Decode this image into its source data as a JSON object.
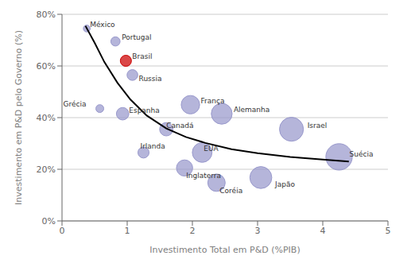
{
  "chart_data": {
    "type": "scatter",
    "xlabel": "Investimento Total em P&D (%PIB)",
    "ylabel": "Investimento em P&D pelo Governo (%)",
    "xlim": [
      0,
      5
    ],
    "ylim": [
      0,
      0.8
    ],
    "xticks": [
      0,
      1,
      2,
      3,
      4,
      5
    ],
    "yticks": [
      {
        "value": 0.0,
        "label": "0%"
      },
      {
        "value": 0.2,
        "label": "20%"
      },
      {
        "value": 0.4,
        "label": "40%"
      },
      {
        "value": 0.6,
        "label": "60%"
      },
      {
        "value": 0.8,
        "label": "80%"
      }
    ],
    "grid": true,
    "points": [
      {
        "name": "México",
        "x": 0.38,
        "y": 0.745,
        "size": 30,
        "color": "#9999CC"
      },
      {
        "name": "Portugal",
        "x": 0.82,
        "y": 0.695,
        "size": 55,
        "color": "#9999CC"
      },
      {
        "name": "Brasil",
        "x": 0.98,
        "y": 0.62,
        "size": 80,
        "color": "#CC0000"
      },
      {
        "name": "Russia",
        "x": 1.08,
        "y": 0.565,
        "size": 75,
        "color": "#9999CC"
      },
      {
        "name": "Grécia",
        "x": 0.58,
        "y": 0.435,
        "size": 40,
        "color": "#9999CC"
      },
      {
        "name": "Espanha",
        "x": 0.93,
        "y": 0.415,
        "size": 100,
        "color": "#9999CC"
      },
      {
        "name": "Canadá",
        "x": 1.6,
        "y": 0.355,
        "size": 115,
        "color": "#9999CC"
      },
      {
        "name": "Irlanda",
        "x": 1.25,
        "y": 0.265,
        "size": 80,
        "color": "#9999CC"
      },
      {
        "name": "França",
        "x": 1.97,
        "y": 0.45,
        "size": 220,
        "color": "#9999CC"
      },
      {
        "name": "EUA",
        "x": 2.15,
        "y": 0.265,
        "size": 250,
        "color": "#9999CC"
      },
      {
        "name": "Inglaterra",
        "x": 1.88,
        "y": 0.205,
        "size": 170,
        "color": "#9999CC"
      },
      {
        "name": "Alemanha",
        "x": 2.45,
        "y": 0.415,
        "size": 280,
        "color": "#9999CC"
      },
      {
        "name": "Coréia",
        "x": 2.37,
        "y": 0.148,
        "size": 195,
        "color": "#9999CC"
      },
      {
        "name": "Japão",
        "x": 3.05,
        "y": 0.168,
        "size": 310,
        "color": "#9999CC"
      },
      {
        "name": "Israel",
        "x": 3.52,
        "y": 0.355,
        "size": 370,
        "color": "#9999CC"
      },
      {
        "name": "Suécia",
        "x": 4.25,
        "y": 0.248,
        "size": 450,
        "color": "#9999CC"
      }
    ],
    "trend": {
      "color": "#000000",
      "x": [
        0.36,
        0.5,
        0.65,
        0.85,
        1.05,
        1.3,
        1.6,
        1.9,
        2.2,
        2.6,
        3.0,
        3.5,
        4.0,
        4.4
      ],
      "y": [
        0.755,
        0.69,
        0.615,
        0.535,
        0.47,
        0.408,
        0.358,
        0.325,
        0.302,
        0.278,
        0.262,
        0.248,
        0.238,
        0.23
      ]
    }
  }
}
